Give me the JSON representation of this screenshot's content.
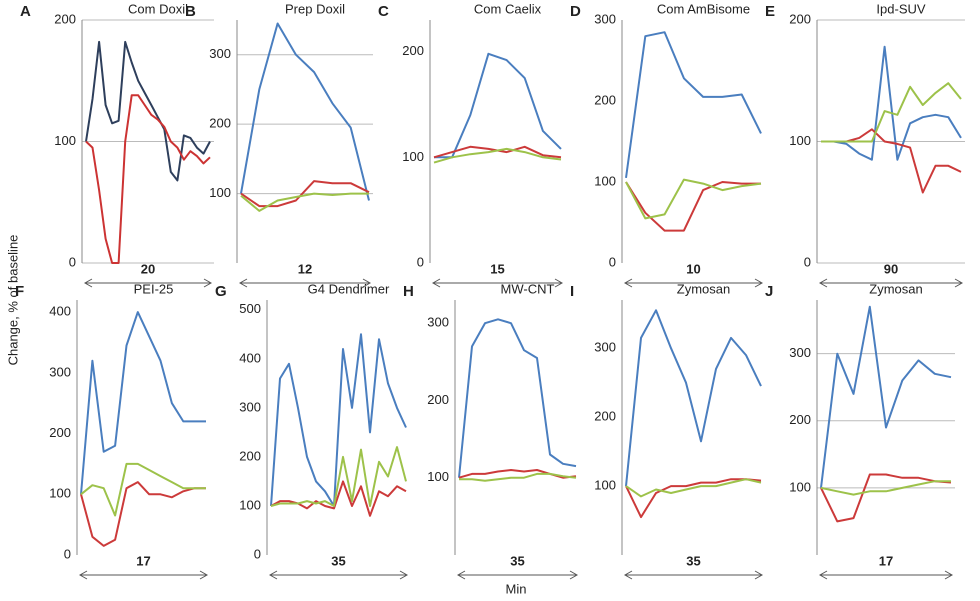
{
  "y_axis_label": "Change, % of baseline",
  "x_axis_label": "Min",
  "chart_data": [
    {
      "type": "line",
      "letter": "A",
      "title": "Com Doxil",
      "span": 20,
      "ylim": [
        0,
        200
      ],
      "yticks": [
        0,
        100,
        200
      ],
      "grid": true,
      "series": [
        {
          "color": "#2e3f5c",
          "values": [
            100,
            135,
            182,
            130,
            115,
            117,
            182,
            165,
            150,
            140,
            130,
            120,
            110,
            75,
            68,
            105,
            103,
            95,
            90,
            100
          ]
        },
        {
          "color": "#cc3333",
          "values": [
            100,
            95,
            60,
            20,
            0,
            0,
            100,
            138,
            138,
            130,
            122,
            118,
            112,
            100,
            95,
            85,
            92,
            88,
            82,
            87
          ]
        }
      ]
    },
    {
      "type": "line",
      "letter": "B",
      "title": "Prep Doxil",
      "span": 12,
      "ylim": [
        0,
        350
      ],
      "yticks": [
        100,
        200,
        300
      ],
      "grid": true,
      "series": [
        {
          "color": "#4a7ebf",
          "values": [
            100,
            250,
            345,
            300,
            275,
            230,
            195,
            90
          ]
        },
        {
          "color": "#cc3a3a",
          "values": [
            100,
            82,
            82,
            90,
            118,
            115,
            115,
            102
          ]
        },
        {
          "color": "#9dc24a",
          "values": [
            97,
            75,
            90,
            95,
            100,
            98,
            100,
            100
          ]
        }
      ]
    },
    {
      "type": "line",
      "letter": "C",
      "title": "Com Caelix",
      "span": 15,
      "ylim": [
        0,
        230
      ],
      "yticks": [
        0,
        100,
        200
      ],
      "grid": false,
      "series": [
        {
          "color": "#4a7ebf",
          "values": [
            100,
            100,
            140,
            198,
            192,
            175,
            125,
            108
          ]
        },
        {
          "color": "#cc3a3a",
          "values": [
            100,
            105,
            110,
            108,
            105,
            110,
            102,
            100
          ]
        },
        {
          "color": "#9dc24a",
          "values": [
            95,
            100,
            103,
            105,
            108,
            105,
            100,
            98
          ]
        }
      ]
    },
    {
      "type": "line",
      "letter": "D",
      "title": "Com AmBisome",
      "span": 10,
      "ylim": [
        0,
        300
      ],
      "yticks": [
        0,
        100,
        200,
        300
      ],
      "grid": false,
      "series": [
        {
          "color": "#4a7ebf",
          "values": [
            105,
            280,
            285,
            228,
            205,
            205,
            208,
            160
          ]
        },
        {
          "color": "#cc3a3a",
          "values": [
            100,
            62,
            40,
            40,
            90,
            100,
            98,
            98
          ]
        },
        {
          "color": "#9dc24a",
          "values": [
            100,
            55,
            60,
            103,
            98,
            90,
            95,
            98
          ]
        }
      ]
    },
    {
      "type": "line",
      "letter": "E",
      "title": "Ipd-SUV",
      "span": 90,
      "ylim": [
        0,
        200
      ],
      "yticks": [
        0,
        100,
        200
      ],
      "grid": true,
      "series": [
        {
          "color": "#4a7ebf",
          "values": [
            100,
            100,
            98,
            90,
            85,
            178,
            85,
            115,
            120,
            122,
            120,
            103
          ]
        },
        {
          "color": "#cc3a3a",
          "values": [
            100,
            100,
            100,
            103,
            110,
            100,
            98,
            95,
            58,
            80,
            80,
            75
          ]
        },
        {
          "color": "#9dc24a",
          "values": [
            100,
            100,
            100,
            100,
            100,
            125,
            122,
            145,
            130,
            140,
            148,
            135
          ]
        }
      ]
    },
    {
      "type": "line",
      "letter": "F",
      "title": "PEI-25",
      "span": 17,
      "ylim": [
        0,
        420
      ],
      "yticks": [
        0,
        100,
        200,
        300,
        400
      ],
      "grid": false,
      "series": [
        {
          "color": "#4a7ebf",
          "values": [
            100,
            320,
            170,
            180,
            345,
            400,
            360,
            320,
            250,
            220,
            220,
            220
          ]
        },
        {
          "color": "#cc3a3a",
          "values": [
            100,
            30,
            15,
            25,
            110,
            120,
            100,
            100,
            95,
            105,
            110,
            110
          ]
        },
        {
          "color": "#9dc24a",
          "values": [
            100,
            115,
            110,
            65,
            150,
            150,
            140,
            130,
            120,
            110,
            110,
            110
          ]
        }
      ]
    },
    {
      "type": "line",
      "letter": "G",
      "title": "G4 Dendrimer",
      "span": 35,
      "ylim": [
        0,
        520
      ],
      "yticks": [
        0,
        100,
        200,
        300,
        400,
        500
      ],
      "grid": false,
      "series": [
        {
          "color": "#4a7ebf",
          "values": [
            100,
            360,
            390,
            300,
            200,
            150,
            130,
            100,
            420,
            300,
            450,
            250,
            440,
            350,
            300,
            260
          ]
        },
        {
          "color": "#cc3a3a",
          "values": [
            100,
            110,
            110,
            105,
            95,
            110,
            100,
            95,
            150,
            100,
            140,
            80,
            130,
            120,
            140,
            130
          ]
        },
        {
          "color": "#9dc24a",
          "values": [
            100,
            105,
            105,
            105,
            110,
            105,
            110,
            100,
            200,
            110,
            215,
            100,
            190,
            160,
            220,
            150
          ]
        }
      ]
    },
    {
      "type": "line",
      "letter": "H",
      "title": "MW-CNT",
      "span": 35,
      "ylim": [
        0,
        330
      ],
      "yticks": [
        100,
        200,
        300
      ],
      "grid": false,
      "series": [
        {
          "color": "#4a7ebf",
          "values": [
            100,
            270,
            300,
            305,
            300,
            265,
            255,
            130,
            118,
            115
          ]
        },
        {
          "color": "#cc3a3a",
          "values": [
            100,
            105,
            105,
            108,
            110,
            108,
            110,
            105,
            100,
            102
          ]
        },
        {
          "color": "#9dc24a",
          "values": [
            98,
            98,
            96,
            98,
            100,
            100,
            105,
            105,
            102,
            100
          ]
        }
      ]
    },
    {
      "type": "line",
      "letter": "I",
      "title": "Zymosan",
      "span": 35,
      "ylim": [
        0,
        370
      ],
      "yticks": [
        100,
        200,
        300
      ],
      "grid": false,
      "series": [
        {
          "color": "#4a7ebf",
          "values": [
            100,
            315,
            355,
            300,
            250,
            165,
            270,
            315,
            290,
            245
          ]
        },
        {
          "color": "#cc3a3a",
          "values": [
            100,
            55,
            90,
            100,
            100,
            105,
            105,
            110,
            110,
            108
          ]
        },
        {
          "color": "#9dc24a",
          "values": [
            100,
            85,
            95,
            90,
            95,
            100,
            100,
            105,
            110,
            105
          ]
        }
      ]
    },
    {
      "type": "line",
      "letter": "J",
      "title": "Zymosan",
      "span": 17,
      "ylim": [
        0,
        380
      ],
      "yticks": [
        100,
        200,
        300
      ],
      "grid": true,
      "series": [
        {
          "color": "#4a7ebf",
          "values": [
            100,
            300,
            240,
            370,
            190,
            260,
            290,
            270,
            265
          ]
        },
        {
          "color": "#cc3a3a",
          "values": [
            100,
            50,
            55,
            120,
            120,
            115,
            115,
            110,
            108
          ]
        },
        {
          "color": "#9dc24a",
          "values": [
            100,
            95,
            90,
            95,
            95,
            100,
            105,
            110,
            110
          ]
        }
      ]
    }
  ]
}
